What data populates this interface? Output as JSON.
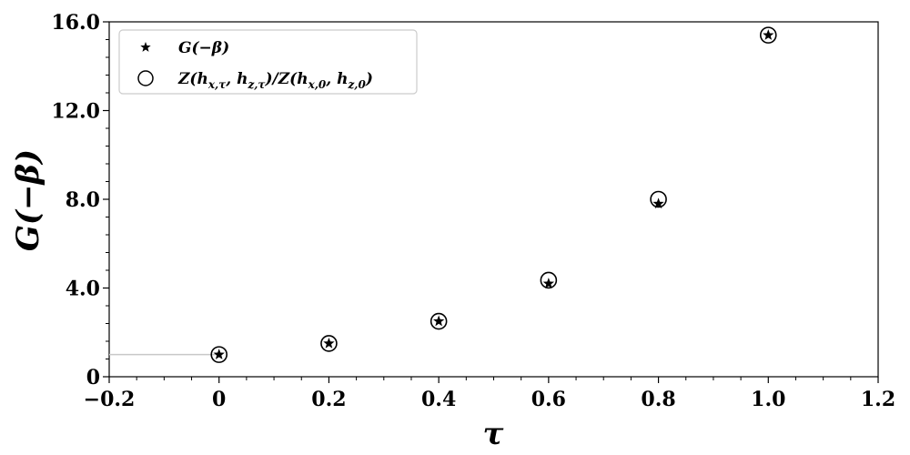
{
  "chart_data": {
    "type": "scatter",
    "xlabel": "τ",
    "ylabel": "G(−β)",
    "xlim": [
      -0.2,
      1.2
    ],
    "ylim": [
      0,
      16
    ],
    "x_ticks": [
      -0.2,
      0,
      0.2,
      0.4,
      0.6,
      0.8,
      1.0,
      1.2
    ],
    "x_tick_labels": [
      "−0.2",
      "0",
      "0.2",
      "0.4",
      "0.6",
      "0.8",
      "1.0",
      "1.2"
    ],
    "y_ticks": [
      0,
      4,
      8,
      12,
      16
    ],
    "y_tick_labels": [
      "0",
      "4.0",
      "8.0",
      "12.0",
      "16.0"
    ],
    "reference_line": {
      "y": 1.0,
      "x_end": 0,
      "color": "#c8c8c8"
    },
    "legend_position": "top-left",
    "grid": false,
    "series": [
      {
        "name": "G(−β)",
        "marker": "star",
        "x": [
          0,
          0.2,
          0.4,
          0.6,
          0.8,
          1.0
        ],
        "y": [
          1.0,
          1.5,
          2.5,
          4.2,
          7.8,
          15.4
        ]
      },
      {
        "name": "Z(hx,τ, hz,τ)/Z(hx,0, hz,0)",
        "marker": "circle",
        "x": [
          0,
          0.2,
          0.4,
          0.6,
          0.8,
          1.0
        ],
        "y": [
          1.0,
          1.5,
          2.5,
          4.35,
          8.0,
          15.4
        ]
      }
    ]
  }
}
